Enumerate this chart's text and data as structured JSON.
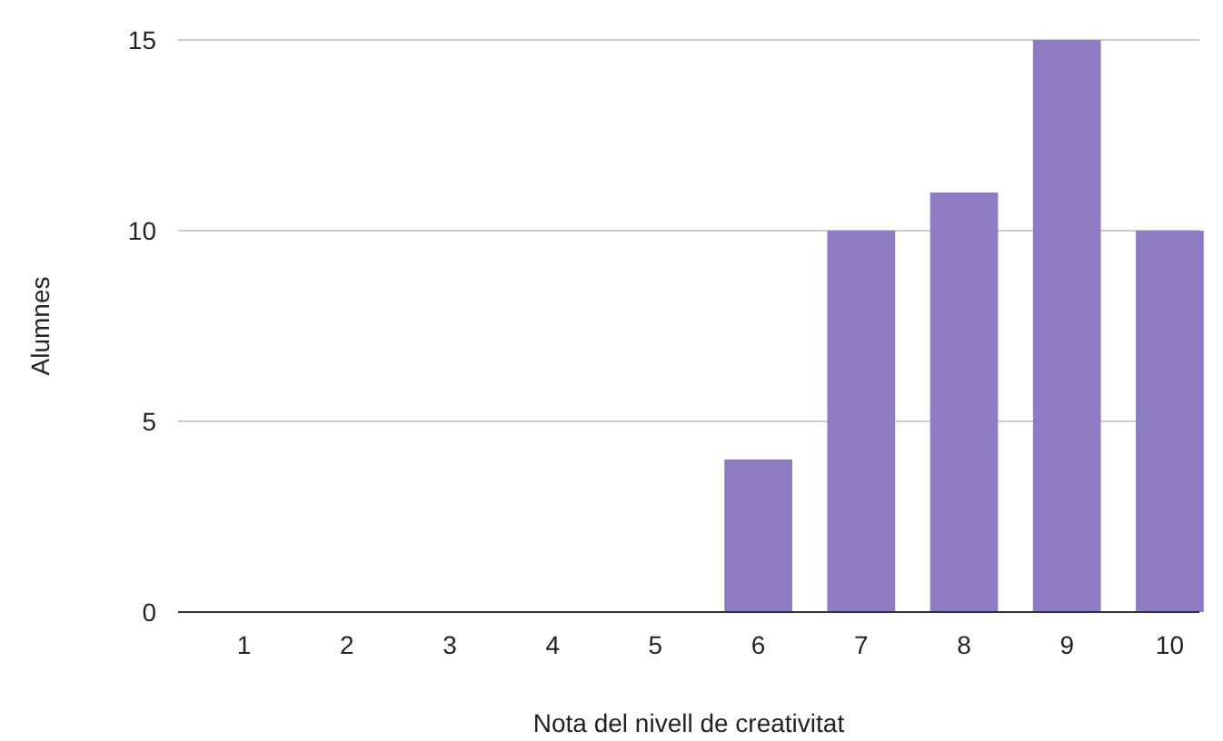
{
  "chart_data": {
    "type": "bar",
    "xlabel": "Nota del nivell de creativitat",
    "ylabel": "Alumnes",
    "categories": [
      "1",
      "2",
      "3",
      "4",
      "5",
      "6",
      "7",
      "8",
      "9",
      "10"
    ],
    "values": [
      0,
      0,
      0,
      0,
      0,
      4,
      10,
      11,
      15,
      10
    ],
    "color": "#8e7cc3",
    "ylim": [
      0,
      15
    ],
    "yticks": [
      0,
      5,
      10,
      15
    ],
    "grid": "y"
  }
}
